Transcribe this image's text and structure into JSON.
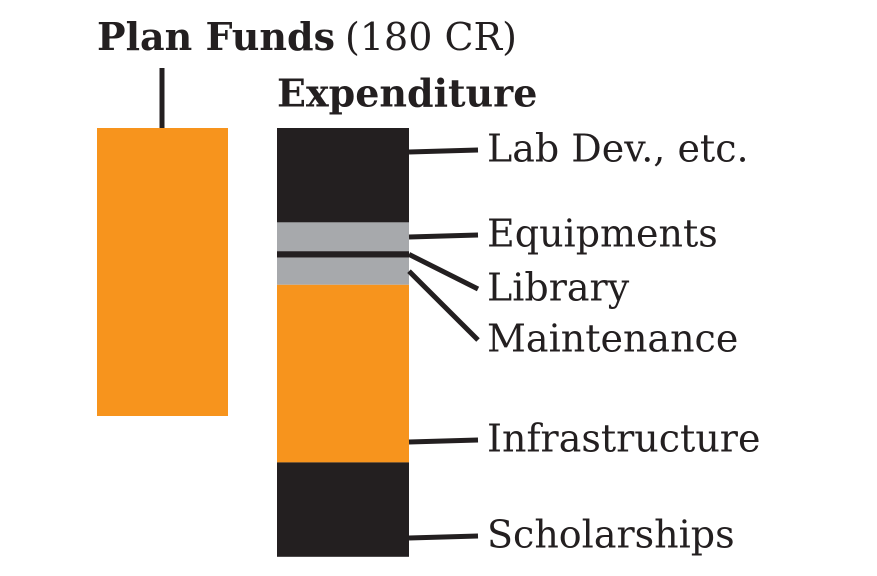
{
  "chart_data": {
    "type": "stacked_bar",
    "funds": {
      "name": "Plan Funds",
      "value": 180,
      "value_label": "(180 CR)",
      "color": "#f7941d"
    },
    "expenditure": {
      "name": "Expenditure",
      "segments": [
        {
          "name": "Lab Dev., etc.",
          "value": 59,
          "color": "#231f20"
        },
        {
          "name": "Equipments",
          "value": 18,
          "color": "#a7a9ac"
        },
        {
          "name": "Library",
          "value": 4,
          "color": "#231f20"
        },
        {
          "name": "Maintenance",
          "value": 17,
          "color": "#a7a9ac"
        },
        {
          "name": "Infrastructure",
          "value": 111,
          "color": "#f7941d"
        },
        {
          "name": "Scholarships",
          "value": 59,
          "color": "#231f20"
        }
      ]
    }
  }
}
